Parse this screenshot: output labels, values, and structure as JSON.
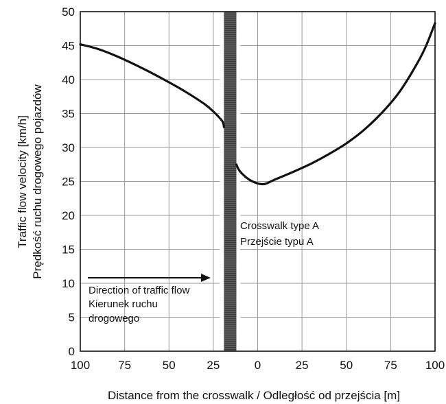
{
  "chart_data": {
    "type": "line",
    "xlabel": "Distance from the crosswalk / Odległość od przejścia [m]",
    "ylabel": [
      "Traffic flow velocity [km/h]",
      "Prędkość ruchu drogowego pojazdów"
    ],
    "x_tick_labels": [
      "100",
      "75",
      "50",
      "25",
      "0",
      "25",
      "50",
      "75",
      "100"
    ],
    "y_ticks": [
      0,
      5,
      10,
      15,
      20,
      25,
      30,
      35,
      40,
      45,
      50
    ],
    "ylim": [
      0,
      50
    ],
    "xlim": [
      -100,
      100
    ],
    "grid": true,
    "crosswalk": {
      "x_range": [
        -19,
        -12
      ],
      "label": [
        "Crosswalk type A",
        "Przejście typu A"
      ]
    },
    "direction": {
      "label": [
        "Direction of traffic flow",
        "Kierunek ruchu",
        "drogowego"
      ]
    },
    "series": [
      {
        "segment": "before",
        "x": [
          -100,
          -90,
          -80,
          -70,
          -60,
          -50,
          -40,
          -30,
          -25,
          -20,
          -19
        ],
        "y": [
          45.2,
          44.5,
          43.5,
          42.3,
          41.0,
          39.6,
          38.1,
          36.4,
          35.3,
          33.9,
          33.0
        ]
      },
      {
        "segment": "after",
        "x": [
          -12,
          -10,
          -5,
          0,
          3,
          5,
          10,
          20,
          30,
          40,
          50,
          60,
          70,
          80,
          90,
          95,
          100
        ],
        "y": [
          27.5,
          26.5,
          25.3,
          24.7,
          24.6,
          24.7,
          25.3,
          26.4,
          27.6,
          29.0,
          30.6,
          32.6,
          35.1,
          38.2,
          42.4,
          45.0,
          48.3
        ]
      }
    ]
  }
}
